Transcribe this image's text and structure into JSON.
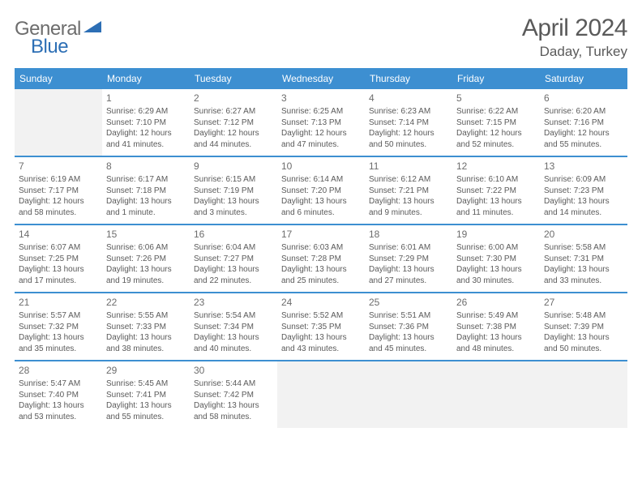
{
  "logo": {
    "general": "General",
    "blue": "Blue"
  },
  "title": "April 2024",
  "location": "Daday, Turkey",
  "colors": {
    "header_bg": "#3d8fd1",
    "text": "#5a5a5a",
    "empty_bg": "#f2f2f2",
    "logo_gray": "#6d6d6d",
    "logo_blue": "#2d6fb5"
  },
  "day_headers": [
    "Sunday",
    "Monday",
    "Tuesday",
    "Wednesday",
    "Thursday",
    "Friday",
    "Saturday"
  ],
  "weeks": [
    [
      null,
      {
        "n": "1",
        "sr": "6:29 AM",
        "ss": "7:10 PM",
        "dl": "12 hours and 41 minutes."
      },
      {
        "n": "2",
        "sr": "6:27 AM",
        "ss": "7:12 PM",
        "dl": "12 hours and 44 minutes."
      },
      {
        "n": "3",
        "sr": "6:25 AM",
        "ss": "7:13 PM",
        "dl": "12 hours and 47 minutes."
      },
      {
        "n": "4",
        "sr": "6:23 AM",
        "ss": "7:14 PM",
        "dl": "12 hours and 50 minutes."
      },
      {
        "n": "5",
        "sr": "6:22 AM",
        "ss": "7:15 PM",
        "dl": "12 hours and 52 minutes."
      },
      {
        "n": "6",
        "sr": "6:20 AM",
        "ss": "7:16 PM",
        "dl": "12 hours and 55 minutes."
      }
    ],
    [
      {
        "n": "7",
        "sr": "6:19 AM",
        "ss": "7:17 PM",
        "dl": "12 hours and 58 minutes."
      },
      {
        "n": "8",
        "sr": "6:17 AM",
        "ss": "7:18 PM",
        "dl": "13 hours and 1 minute."
      },
      {
        "n": "9",
        "sr": "6:15 AM",
        "ss": "7:19 PM",
        "dl": "13 hours and 3 minutes."
      },
      {
        "n": "10",
        "sr": "6:14 AM",
        "ss": "7:20 PM",
        "dl": "13 hours and 6 minutes."
      },
      {
        "n": "11",
        "sr": "6:12 AM",
        "ss": "7:21 PM",
        "dl": "13 hours and 9 minutes."
      },
      {
        "n": "12",
        "sr": "6:10 AM",
        "ss": "7:22 PM",
        "dl": "13 hours and 11 minutes."
      },
      {
        "n": "13",
        "sr": "6:09 AM",
        "ss": "7:23 PM",
        "dl": "13 hours and 14 minutes."
      }
    ],
    [
      {
        "n": "14",
        "sr": "6:07 AM",
        "ss": "7:25 PM",
        "dl": "13 hours and 17 minutes."
      },
      {
        "n": "15",
        "sr": "6:06 AM",
        "ss": "7:26 PM",
        "dl": "13 hours and 19 minutes."
      },
      {
        "n": "16",
        "sr": "6:04 AM",
        "ss": "7:27 PM",
        "dl": "13 hours and 22 minutes."
      },
      {
        "n": "17",
        "sr": "6:03 AM",
        "ss": "7:28 PM",
        "dl": "13 hours and 25 minutes."
      },
      {
        "n": "18",
        "sr": "6:01 AM",
        "ss": "7:29 PM",
        "dl": "13 hours and 27 minutes."
      },
      {
        "n": "19",
        "sr": "6:00 AM",
        "ss": "7:30 PM",
        "dl": "13 hours and 30 minutes."
      },
      {
        "n": "20",
        "sr": "5:58 AM",
        "ss": "7:31 PM",
        "dl": "13 hours and 33 minutes."
      }
    ],
    [
      {
        "n": "21",
        "sr": "5:57 AM",
        "ss": "7:32 PM",
        "dl": "13 hours and 35 minutes."
      },
      {
        "n": "22",
        "sr": "5:55 AM",
        "ss": "7:33 PM",
        "dl": "13 hours and 38 minutes."
      },
      {
        "n": "23",
        "sr": "5:54 AM",
        "ss": "7:34 PM",
        "dl": "13 hours and 40 minutes."
      },
      {
        "n": "24",
        "sr": "5:52 AM",
        "ss": "7:35 PM",
        "dl": "13 hours and 43 minutes."
      },
      {
        "n": "25",
        "sr": "5:51 AM",
        "ss": "7:36 PM",
        "dl": "13 hours and 45 minutes."
      },
      {
        "n": "26",
        "sr": "5:49 AM",
        "ss": "7:38 PM",
        "dl": "13 hours and 48 minutes."
      },
      {
        "n": "27",
        "sr": "5:48 AM",
        "ss": "7:39 PM",
        "dl": "13 hours and 50 minutes."
      }
    ],
    [
      {
        "n": "28",
        "sr": "5:47 AM",
        "ss": "7:40 PM",
        "dl": "13 hours and 53 minutes."
      },
      {
        "n": "29",
        "sr": "5:45 AM",
        "ss": "7:41 PM",
        "dl": "13 hours and 55 minutes."
      },
      {
        "n": "30",
        "sr": "5:44 AM",
        "ss": "7:42 PM",
        "dl": "13 hours and 58 minutes."
      },
      null,
      null,
      null,
      null
    ]
  ],
  "labels": {
    "sunrise": "Sunrise:",
    "sunset": "Sunset:",
    "daylight": "Daylight:"
  }
}
